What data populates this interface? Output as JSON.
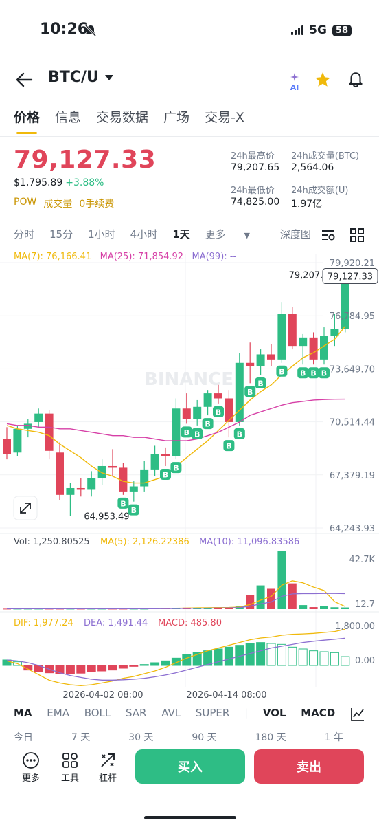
{
  "status": {
    "time": "10:26",
    "network": "5G",
    "battery": "58"
  },
  "header": {
    "pair": "BTC/U",
    "ai_label": "AI"
  },
  "tabs": [
    "价格",
    "信息",
    "交易数据",
    "广场",
    "交易-X"
  ],
  "ticker": {
    "last": "79,127.33",
    "usd": "$1,795.89",
    "change": "+3.88%",
    "tags": [
      "POW",
      "成交量",
      "0手续费"
    ],
    "high_label": "24h最高价",
    "high": "79,207.65",
    "low_label": "24h最低价",
    "low": "74,825.00",
    "vol_label": "24h成交量(BTC)",
    "vol": "2,564.06",
    "amt_label": "24h成交额(U)",
    "amt": "1.97亿"
  },
  "intervals": [
    "分时",
    "15分",
    "1小时",
    "4小时",
    "1天",
    "更多",
    "深度图"
  ],
  "active_interval": "1天",
  "ma": {
    "ma7": "MA(7): 76,166.41",
    "ma25": "MA(25): 71,854.92",
    "ma99": "MA(99): --"
  },
  "price_axis": [
    "79,920.21",
    "76,784.95",
    "73,649.70",
    "70,514.44",
    "67,379.19",
    "64,243.93"
  ],
  "high_marker": "79,207.65",
  "low_marker": "64,953.49",
  "last_marker": "79,127.33",
  "watermark": "BINANCE",
  "buy_badge": "B",
  "volume": {
    "vol": "Vol: 1,250.80525",
    "ma5": "MA(5): 2,126.22386",
    "ma10": "MA(10): 11,096.83586",
    "axis_top": "42.7K",
    "axis_bottom": "12.7"
  },
  "macd": {
    "dif": "DIF: 1,977.24",
    "dea": "DEA: 1,491.44",
    "macd": "MACD: 485.80",
    "axis_top": "1,800.00",
    "axis_zero": "0.00"
  },
  "dates": [
    "2026-04-02 08:00",
    "2026-04-14 08:00"
  ],
  "indicators": [
    "MA",
    "EMA",
    "BOLL",
    "SAR",
    "AVL",
    "SUPER",
    "VOL",
    "MACD"
  ],
  "ranges": [
    "今日",
    "7 天",
    "30 天",
    "90 天",
    "180 天",
    "1 年"
  ],
  "bottom": {
    "more": "更多",
    "tools": "工具",
    "leverage": "杠杆",
    "buy": "买入",
    "sell": "卖出"
  },
  "colors": {
    "up": "#2ebd85",
    "down": "#e0455a",
    "accent": "#f0b90b",
    "ma7": "#f0b90b",
    "ma25": "#d63fa6",
    "ma99": "#8c6fd1"
  },
  "chart_data": {
    "type": "candlestick",
    "candles": [
      {
        "o": 69500,
        "h": 70200,
        "l": 68300,
        "c": 68600
      },
      {
        "o": 68700,
        "h": 70300,
        "l": 68500,
        "c": 70100
      },
      {
        "o": 70100,
        "h": 70700,
        "l": 69600,
        "c": 70400
      },
      {
        "o": 70500,
        "h": 71300,
        "l": 70200,
        "c": 71000
      },
      {
        "o": 71000,
        "h": 71200,
        "l": 68300,
        "c": 68800
      },
      {
        "o": 68700,
        "h": 69300,
        "l": 65900,
        "c": 66200
      },
      {
        "o": 66200,
        "h": 66900,
        "l": 64953.49,
        "c": 66600
      },
      {
        "o": 66600,
        "h": 67200,
        "l": 66100,
        "c": 66500
      },
      {
        "o": 66500,
        "h": 67600,
        "l": 66100,
        "c": 67200
      },
      {
        "o": 67200,
        "h": 68300,
        "l": 66800,
        "c": 67900
      },
      {
        "o": 67900,
        "h": 68900,
        "l": 67300,
        "c": 67800
      },
      {
        "o": 67800,
        "h": 68100,
        "l": 66200,
        "c": 66400
      },
      {
        "o": 66400,
        "h": 67000,
        "l": 65800,
        "c": 66700
      },
      {
        "o": 66700,
        "h": 68200,
        "l": 66400,
        "c": 67700
      },
      {
        "o": 67700,
        "h": 69100,
        "l": 67300,
        "c": 68600
      },
      {
        "o": 68600,
        "h": 69000,
        "l": 67900,
        "c": 68500
      },
      {
        "o": 68500,
        "h": 71900,
        "l": 68300,
        "c": 71300
      },
      {
        "o": 71300,
        "h": 72200,
        "l": 70400,
        "c": 70700
      },
      {
        "o": 70700,
        "h": 71800,
        "l": 70300,
        "c": 71400
      },
      {
        "o": 71400,
        "h": 72400,
        "l": 70900,
        "c": 72200
      },
      {
        "o": 72200,
        "h": 72700,
        "l": 71600,
        "c": 71900
      },
      {
        "o": 71900,
        "h": 72400,
        "l": 69600,
        "c": 70500
      },
      {
        "o": 70500,
        "h": 74600,
        "l": 70300,
        "c": 74000
      },
      {
        "o": 74000,
        "h": 75200,
        "l": 72800,
        "c": 73800
      },
      {
        "o": 73800,
        "h": 74800,
        "l": 73300,
        "c": 74500
      },
      {
        "o": 74500,
        "h": 75100,
        "l": 73800,
        "c": 74200
      },
      {
        "o": 74200,
        "h": 77600,
        "l": 74000,
        "c": 76900
      },
      {
        "o": 76900,
        "h": 77300,
        "l": 74800,
        "c": 75000
      },
      {
        "o": 75000,
        "h": 75700,
        "l": 73900,
        "c": 75500
      },
      {
        "o": 75500,
        "h": 75800,
        "l": 73900,
        "c": 74200
      },
      {
        "o": 74200,
        "h": 76100,
        "l": 73900,
        "c": 75600
      },
      {
        "o": 75600,
        "h": 76900,
        "l": 75000,
        "c": 76000
      },
      {
        "o": 76000,
        "h": 79207.65,
        "l": 75800,
        "c": 79127.33
      }
    ],
    "ma7": [
      70300,
      70100,
      70000,
      69900,
      69700,
      69200,
      68800,
      68400,
      67900,
      67500,
      67300,
      67000,
      66900,
      66900,
      67100,
      67300,
      67900,
      68400,
      68900,
      69400,
      70000,
      70600,
      71200,
      71800,
      72300,
      72700,
      73300,
      73800,
      74300,
      74600,
      75000,
      75400,
      76166.41
    ],
    "ma25": [
      70400,
      70300,
      70300,
      70200,
      70200,
      70100,
      70100,
      70000,
      69900,
      69800,
      69700,
      69700,
      69600,
      69600,
      69500,
      69400,
      69400,
      69400,
      69500,
      69700,
      69900,
      70200,
      70500,
      70900,
      71100,
      71300,
      71500,
      71650,
      71720,
      71800,
      71830,
      71850,
      71854.92
    ],
    "volume_k": [
      0.3,
      0.3,
      0.3,
      0.3,
      0.3,
      0.3,
      0.3,
      0.3,
      0.3,
      0.3,
      0.3,
      0.3,
      0.3,
      0.3,
      0.8,
      0.9,
      1.0,
      1.1,
      1.1,
      1.2,
      1.5,
      1.4,
      2.4,
      10.5,
      17.5,
      15.0,
      42.7,
      19.0,
      3.0,
      1.5,
      2.5,
      1.4,
      1.25
    ],
    "macd_hist": [
      300,
      200,
      -250,
      -350,
      -400,
      -450,
      -450,
      -420,
      -350,
      -300,
      -250,
      -150,
      -50,
      50,
      150,
      250,
      400,
      600,
      700,
      800,
      900,
      1000,
      1100,
      1200,
      1250,
      1200,
      1150,
      1000,
      900,
      800,
      750,
      700,
      485.8
    ],
    "dif": [
      250,
      100,
      -200,
      -500,
      -800,
      -950,
      -1050,
      -1100,
      -1050,
      -950,
      -850,
      -700,
      -600,
      -450,
      -300,
      -100,
      150,
      400,
      600,
      800,
      950,
      1100,
      1250,
      1400,
      1500,
      1550,
      1650,
      1700,
      1720,
      1750,
      1800,
      1850,
      1977.24
    ],
    "dea": [
      300,
      250,
      150,
      0,
      -200,
      -400,
      -550,
      -650,
      -750,
      -800,
      -800,
      -780,
      -750,
      -700,
      -620,
      -520,
      -400,
      -250,
      -100,
      50,
      200,
      350,
      500,
      650,
      800,
      950,
      1050,
      1150,
      1250,
      1320,
      1380,
      1430,
      1491.44
    ],
    "ylim": [
      64243.93,
      79920.21
    ],
    "xlabel_ticks": [
      "2026-04-02 08:00",
      "2026-04-14 08:00"
    ]
  }
}
